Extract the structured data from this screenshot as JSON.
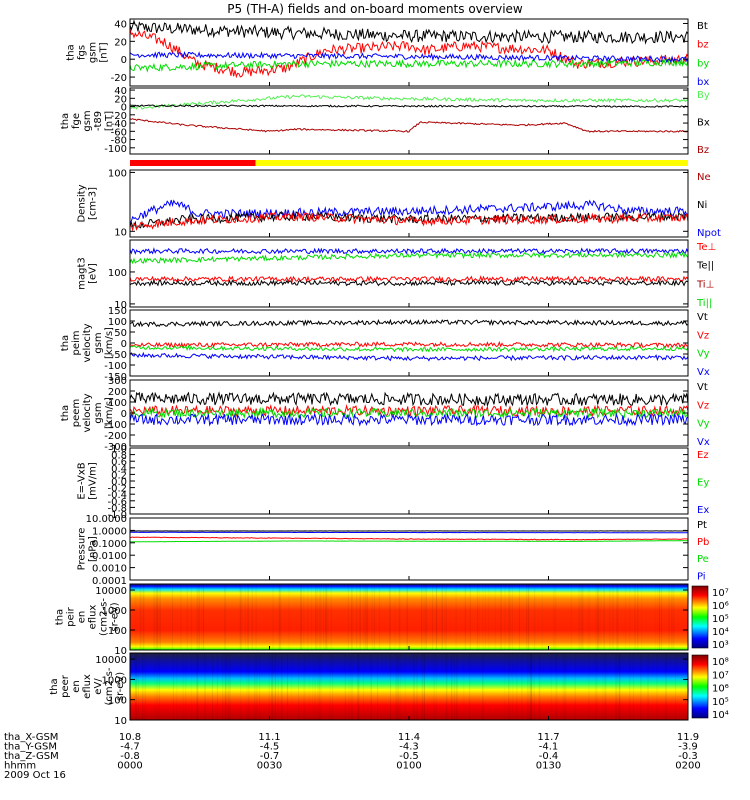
{
  "title": "P5 (TH-A) fields and on-board moments overview",
  "colors": {
    "black": "#000000",
    "red": "#ff0000",
    "green": "#00dd00",
    "blue": "#0000ff",
    "darkred": "#aa0000",
    "lightgreen": "#55ee55",
    "yellow": "#ffff00"
  },
  "chart_data": [
    {
      "type": "line",
      "id": "fgs",
      "ylabel": [
        "tha",
        "fgs",
        "gsm",
        "[nT]"
      ],
      "ylim": [
        -30,
        45
      ],
      "yticks": [
        "40",
        "20",
        "0",
        "-20"
      ],
      "legend": [
        {
          "name": "Bt",
          "color": "#000000"
        },
        {
          "name": "bz",
          "color": "#ff0000"
        },
        {
          "name": "by",
          "color": "#00dd00"
        },
        {
          "name": "bx",
          "color": "#0000ff"
        }
      ],
      "series": [
        {
          "name": "Bt",
          "color": "#000000",
          "knots": [
            [
              0,
              36
            ],
            [
              0.25,
              30
            ],
            [
              0.5,
              26
            ],
            [
              0.75,
              25
            ],
            [
              1,
              25
            ]
          ],
          "noise": 7
        },
        {
          "name": "bz",
          "color": "#ff0000",
          "knots": [
            [
              0,
              30
            ],
            [
              0.06,
              20
            ],
            [
              0.12,
              -5
            ],
            [
              0.2,
              -15
            ],
            [
              0.28,
              -10
            ],
            [
              0.35,
              10
            ],
            [
              0.5,
              15
            ],
            [
              0.53,
              10
            ],
            [
              0.6,
              15
            ],
            [
              0.75,
              10
            ],
            [
              0.8,
              -5
            ],
            [
              1,
              0
            ]
          ],
          "noise": 6
        },
        {
          "name": "by",
          "color": "#00dd00",
          "knots": [
            [
              0,
              -10
            ],
            [
              0.3,
              -5
            ],
            [
              0.6,
              -5
            ],
            [
              0.8,
              -5
            ],
            [
              1,
              -3
            ]
          ],
          "noise": 4
        },
        {
          "name": "bx",
          "color": "#0000ff",
          "knots": [
            [
              0,
              5
            ],
            [
              0.5,
              3
            ],
            [
              1,
              0
            ]
          ],
          "noise": 3
        }
      ]
    },
    {
      "type": "line",
      "id": "fge",
      "ylabel": [
        "tha",
        "fge",
        "gsm",
        "-t89",
        "[nT]"
      ],
      "ylim": [
        -115,
        45
      ],
      "yticks": [
        "40",
        "20",
        "0",
        "-20",
        "-40",
        "-60",
        "-80",
        "-100"
      ],
      "legend": [
        {
          "name": "By",
          "color": "#55ee55"
        },
        {
          "name": "Bx",
          "color": "#000000"
        },
        {
          "name": "Bz",
          "color": "#aa0000"
        }
      ],
      "series": [
        {
          "name": "By",
          "color": "#55ee55",
          "knots": [
            [
              0,
              -5
            ],
            [
              0.1,
              5
            ],
            [
              0.3,
              25
            ],
            [
              0.45,
              20
            ],
            [
              0.7,
              15
            ],
            [
              1,
              15
            ]
          ],
          "noise": 4
        },
        {
          "name": "Bx",
          "color": "#000000",
          "knots": [
            [
              0,
              2
            ],
            [
              1,
              0
            ]
          ],
          "noise": 2
        },
        {
          "name": "Bz",
          "color": "#aa0000",
          "knots": [
            [
              0,
              -30
            ],
            [
              0.1,
              -45
            ],
            [
              0.25,
              -60
            ],
            [
              0.3,
              -55
            ],
            [
              0.5,
              -60
            ],
            [
              0.52,
              -38
            ],
            [
              0.7,
              -45
            ],
            [
              0.78,
              -40
            ],
            [
              0.82,
              -60
            ],
            [
              1,
              -60
            ]
          ],
          "noise": 2
        }
      ]
    },
    {
      "type": "line",
      "id": "density",
      "ylabel": [
        "Density",
        "[cm-3]"
      ],
      "ylim": [
        8,
        110
      ],
      "ylog": true,
      "yticks": [
        "100",
        "10"
      ],
      "legend": [
        {
          "name": "Ne",
          "color": "#aa0000"
        },
        {
          "name": "Ni",
          "color": "#000000"
        },
        {
          "name": "Npot",
          "color": "#0000ff"
        }
      ],
      "series": [
        {
          "name": "Npot",
          "color": "#0000ff",
          "knots": [
            [
              0,
              15
            ],
            [
              0.08,
              30
            ],
            [
              0.12,
              20
            ],
            [
              0.2,
              20
            ],
            [
              0.5,
              22
            ],
            [
              0.7,
              25
            ],
            [
              0.83,
              28
            ],
            [
              0.9,
              22
            ],
            [
              1,
              22
            ]
          ],
          "noise": 1
        },
        {
          "name": "Ni",
          "color": "#000000",
          "knots": [
            [
              0,
              12
            ],
            [
              0.1,
              16
            ],
            [
              0.3,
              18
            ],
            [
              0.5,
              16
            ],
            [
              1,
              18
            ]
          ],
          "noise": 1
        },
        {
          "name": "Ne",
          "color": "#ff0000",
          "knots": [
            [
              0,
              12
            ],
            [
              0.1,
              15
            ],
            [
              0.3,
              18
            ],
            [
              0.5,
              15
            ],
            [
              1,
              17
            ]
          ],
          "noise": 1
        }
      ]
    },
    {
      "type": "line",
      "id": "temp",
      "ylabel": [
        "magt3",
        "[eV]"
      ],
      "ylim": [
        8,
        1000
      ],
      "ylog": true,
      "yticks": [
        "100",
        "10"
      ],
      "legend": [
        {
          "name": "Te⊥",
          "color": "#ff0000"
        },
        {
          "name": "Te||",
          "color": "#000000"
        },
        {
          "name": "Ti⊥",
          "color": "#aa0000"
        },
        {
          "name": "Ti||",
          "color": "#00dd00"
        }
      ],
      "series": [
        {
          "name": "Ti⊥",
          "color": "#0000ff",
          "knots": [
            [
              0,
              450
            ],
            [
              1,
              450
            ]
          ],
          "noise": 1
        },
        {
          "name": "Ti||",
          "color": "#00dd00",
          "knots": [
            [
              0,
              220
            ],
            [
              0.25,
              270
            ],
            [
              0.5,
              330
            ],
            [
              1,
              340
            ]
          ],
          "noise": 1
        },
        {
          "name": "Te⊥",
          "color": "#ff0000",
          "knots": [
            [
              0,
              60
            ],
            [
              1,
              60
            ]
          ],
          "noise": 1
        },
        {
          "name": "Te||",
          "color": "#000000",
          "knots": [
            [
              0,
              45
            ],
            [
              1,
              45
            ]
          ],
          "noise": 1
        }
      ]
    },
    {
      "type": "line",
      "id": "peim",
      "ylabel": [
        "tha",
        "peim",
        "velocity",
        "gsm",
        "[km/s]"
      ],
      "ylim": [
        -150,
        150
      ],
      "yticks": [
        "150",
        "100",
        "50",
        "0",
        "-50",
        "-100",
        "-150"
      ],
      "legend": [
        {
          "name": "Vt",
          "color": "#000000"
        },
        {
          "name": "Vz",
          "color": "#ff0000"
        },
        {
          "name": "Vy",
          "color": "#00dd00"
        },
        {
          "name": "Vx",
          "color": "#0000ff"
        }
      ],
      "series": [
        {
          "name": "Vt",
          "color": "#000000",
          "knots": [
            [
              0,
              85
            ],
            [
              0.5,
              95
            ],
            [
              1,
              90
            ]
          ],
          "noise": 10
        },
        {
          "name": "Vz",
          "color": "#ff0000",
          "knots": [
            [
              0,
              -10
            ],
            [
              0.5,
              -5
            ],
            [
              1,
              -10
            ]
          ],
          "noise": 10
        },
        {
          "name": "Vy",
          "color": "#00dd00",
          "knots": [
            [
              0,
              -20
            ],
            [
              0.5,
              -30
            ],
            [
              1,
              -25
            ]
          ],
          "noise": 9
        },
        {
          "name": "Vx",
          "color": "#0000ff",
          "knots": [
            [
              0,
              -55
            ],
            [
              0.5,
              -70
            ],
            [
              1,
              -65
            ]
          ],
          "noise": 10
        }
      ]
    },
    {
      "type": "line",
      "id": "peem",
      "ylabel": [
        "tha",
        "peem",
        "velocity",
        "gsm",
        "[km/s]"
      ],
      "ylim": [
        -300,
        300
      ],
      "yticks": [
        "300",
        "200",
        "100",
        "0",
        "-100",
        "-200",
        "-300"
      ],
      "legend": [
        {
          "name": "Vt",
          "color": "#000000"
        },
        {
          "name": "Vz",
          "color": "#ff0000"
        },
        {
          "name": "Vy",
          "color": "#00dd00"
        },
        {
          "name": "Vx",
          "color": "#0000ff"
        }
      ],
      "series": [
        {
          "name": "Vt",
          "color": "#000000",
          "knots": [
            [
              0,
              130
            ],
            [
              1,
              120
            ]
          ],
          "noise": 55
        },
        {
          "name": "Vz",
          "color": "#ff0000",
          "knots": [
            [
              0,
              20
            ],
            [
              1,
              20
            ]
          ],
          "noise": 45
        },
        {
          "name": "Vy",
          "color": "#00dd00",
          "knots": [
            [
              0,
              0
            ],
            [
              1,
              0
            ]
          ],
          "noise": 40
        },
        {
          "name": "Vx",
          "color": "#0000ff",
          "knots": [
            [
              0,
              -60
            ],
            [
              1,
              -60
            ]
          ],
          "noise": 50
        }
      ]
    },
    {
      "type": "line",
      "id": "efield",
      "ylabel": [
        "E=-VxB",
        "[mV/m]"
      ],
      "ylim": [
        -1,
        1
      ],
      "yticks": [
        "1.0",
        "0.8",
        "0.6",
        "0.4",
        "0.2",
        "0.0",
        "-0.2",
        "-0.4",
        "-0.6",
        "-0.8",
        "-1.0"
      ],
      "legend": [
        {
          "name": "Ez",
          "color": "#ff0000"
        },
        {
          "name": "Ey",
          "color": "#00dd00"
        },
        {
          "name": "Ex",
          "color": "#0000ff"
        }
      ],
      "series": []
    },
    {
      "type": "line",
      "id": "pressure",
      "ylabel": [
        "Pressure",
        "[nPa]"
      ],
      "ylim": [
        0.0001,
        10
      ],
      "ylog": true,
      "yticks": [
        "10.0000",
        "1.0000",
        "0.1000",
        "0.0100",
        "0.0010",
        "0.0001"
      ],
      "legend": [
        {
          "name": "Pt",
          "color": "#000000"
        },
        {
          "name": "Pb",
          "color": "#ff0000"
        },
        {
          "name": "Pe",
          "color": "#00dd00"
        },
        {
          "name": "Pi",
          "color": "#0000ff"
        }
      ],
      "series": [
        {
          "name": "Pt",
          "color": "#000000",
          "knots": [
            [
              0,
              0.9
            ],
            [
              1,
              0.9
            ]
          ],
          "noise": 0.05
        },
        {
          "name": "Pi",
          "color": "#0000ff",
          "knots": [
            [
              0,
              0.7
            ],
            [
              1,
              0.65
            ]
          ],
          "noise": 0.05
        },
        {
          "name": "Pb",
          "color": "#ff0000",
          "knots": [
            [
              0,
              0.28
            ],
            [
              0.2,
              0.25
            ],
            [
              0.5,
              0.2
            ],
            [
              0.8,
              0.18
            ],
            [
              1,
              0.2
            ]
          ],
          "noise": 0.3
        },
        {
          "name": "Pe",
          "color": "#00dd00",
          "knots": [
            [
              0,
              0.12
            ],
            [
              0.3,
              0.14
            ],
            [
              0.8,
              0.13
            ],
            [
              1,
              0.15
            ]
          ],
          "noise": 0.05
        }
      ]
    },
    {
      "type": "heatmap",
      "id": "peir",
      "ylabel": [
        "tha",
        "peir",
        "en",
        "eflux",
        "(cm2-s-",
        "sr-eV)"
      ],
      "ylim": [
        10,
        20000
      ],
      "ylog": true,
      "yticks": [
        "10000",
        "1000",
        "100",
        "10"
      ],
      "colorbar": [
        "10⁷",
        "10⁶",
        "10⁵",
        "10⁴",
        "10³"
      ]
    },
    {
      "type": "heatmap",
      "id": "peer",
      "ylabel": [
        "tha",
        "peer",
        "en",
        "eflux",
        "eV/",
        "(cm2-s-",
        "sr-eV)"
      ],
      "ylim": [
        10,
        20000
      ],
      "ylog": true,
      "yticks": [
        "10000",
        "1000",
        "100",
        "10"
      ],
      "colorbar": [
        "10⁸",
        "10⁷",
        "10⁶",
        "10⁵",
        "10⁴"
      ]
    }
  ],
  "xaxis": {
    "rows": [
      {
        "label": "tha_X-GSM",
        "values": [
          "10.8",
          "11.1",
          "11.4",
          "11.7",
          "11.9"
        ]
      },
      {
        "label": "tha_Y-GSM",
        "values": [
          "-4.7",
          "-4.5",
          "-4.3",
          "-4.1",
          "-3.9"
        ]
      },
      {
        "label": "tha_Z-GSM",
        "values": [
          "-0.8",
          "-0.7",
          "-0.5",
          "-0.4",
          "-0.3"
        ]
      },
      {
        "label": "hhmm",
        "values": [
          "0000",
          "0030",
          "0100",
          "0130",
          "0200"
        ]
      }
    ],
    "date": "2009 Oct 16"
  }
}
